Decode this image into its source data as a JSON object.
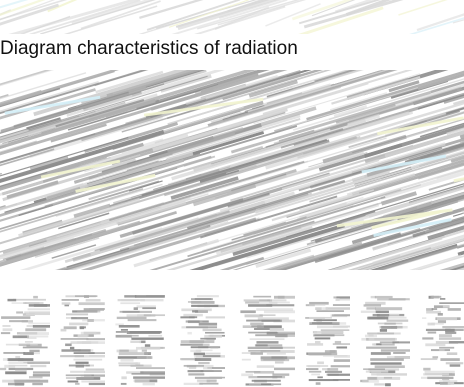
{
  "title": "Diagram characteristics of radiation",
  "colors": {
    "stripe_dark": "#8c8c8c",
    "stripe_mid": "#b0b0b0",
    "stripe_light": "#d7d7d7",
    "tint_yellow": "#f2f4cf",
    "tint_blue": "#d3eef7"
  },
  "icons": {
    "background": "diagonal-striped-noise-pattern",
    "bottom": "glitched-block-letters"
  }
}
